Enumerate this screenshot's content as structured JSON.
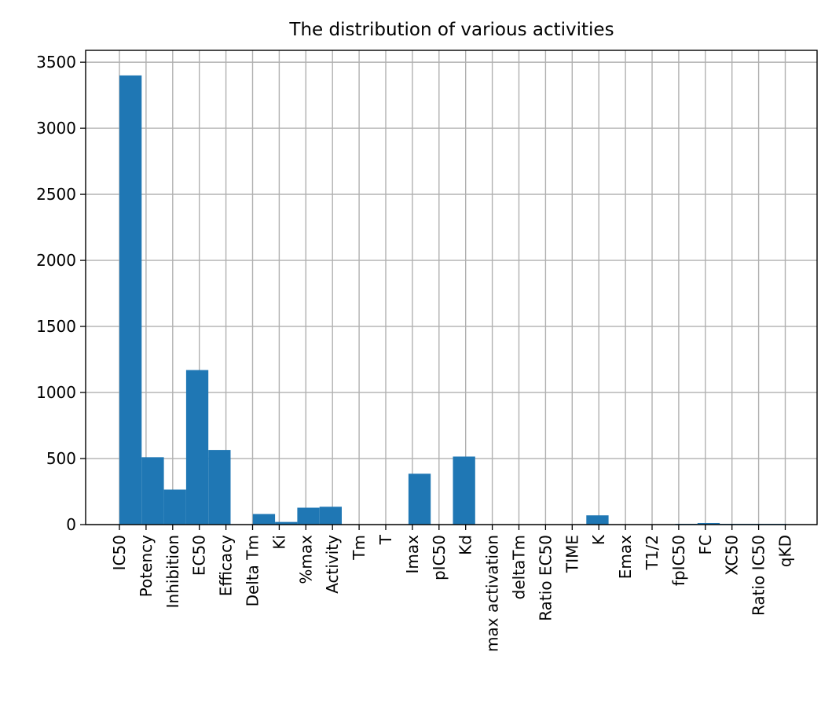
{
  "chart_data": {
    "type": "bar",
    "title": "The distribution of various activities",
    "xlabel": "",
    "ylabel": "",
    "ylim": [
      0,
      3590
    ],
    "yticks": [
      0,
      500,
      1000,
      1500,
      2000,
      2500,
      3000,
      3500
    ],
    "grid": true,
    "bar_color": "#1f77b4",
    "grid_color": "#b0b0b0",
    "categories": [
      "IC50",
      "Potency",
      "Inhibition",
      "EC50",
      "Efficacy",
      "Delta Tm",
      "Ki",
      "%max",
      "Activity",
      "Tm",
      "T",
      "Imax",
      "pIC50",
      "Kd",
      "max activation",
      "deltaTm",
      "Ratio EC50",
      "TIME",
      "K",
      "Emax",
      "T1/2",
      "fpIC50",
      "FC",
      "XC50",
      "Ratio IC50",
      "qKD"
    ],
    "bins": [
      {
        "label": "IC50",
        "value": 3400
      },
      {
        "label": "Potency + Inhibition",
        "value": 510
      },
      {
        "label": "Inhibition",
        "value": 265
      },
      {
        "label": "EC50",
        "value": 1170
      },
      {
        "label": "Efficacy",
        "value": 565
      },
      {
        "label": "Delta Tm",
        "value": 0
      },
      {
        "label": "Delta Tm + Ki",
        "value": 80
      },
      {
        "label": "Ki",
        "value": 20
      },
      {
        "label": "%max",
        "value": 128
      },
      {
        "label": "Activity",
        "value": 135
      },
      {
        "label": "Tm",
        "value": 0
      },
      {
        "label": "T",
        "value": 0
      },
      {
        "label": "Imax",
        "value": 0
      },
      {
        "label": "Imax",
        "value": 385
      },
      {
        "label": "pIC50",
        "value": 0
      },
      {
        "label": "Kd",
        "value": 515
      },
      {
        "label": "max activation",
        "value": 0
      },
      {
        "label": "deltaTm",
        "value": 0
      },
      {
        "label": "Ratio EC50",
        "value": 0
      },
      {
        "label": "TIME",
        "value": 0
      },
      {
        "label": "K",
        "value": 0
      },
      {
        "label": "Emax",
        "value": 70
      },
      {
        "label": "T1/2",
        "value": 0
      },
      {
        "label": "fpIC50",
        "value": 0
      },
      {
        "label": "fpIC50",
        "value": 0
      },
      {
        "label": "FC",
        "value": 5
      },
      {
        "label": "XC50",
        "value": 12
      },
      {
        "label": "Ratio IC50",
        "value": 2
      },
      {
        "label": "qKD",
        "value": 2
      },
      {
        "label": "qKD",
        "value": 1
      }
    ]
  }
}
